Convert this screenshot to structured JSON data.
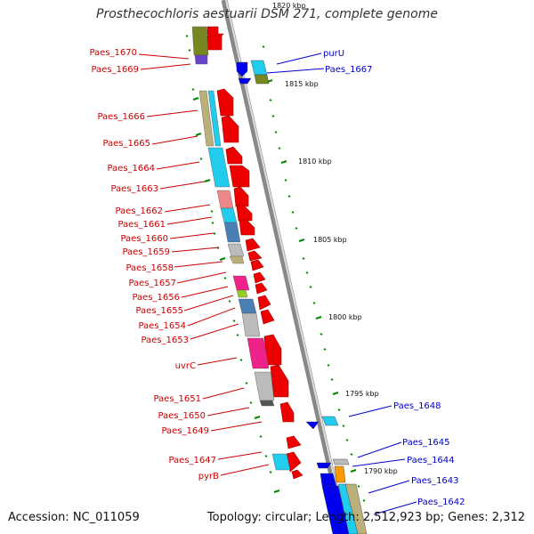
{
  "title": "Prosthecochloris aestuarii DSM 271, complete genome",
  "footer": {
    "accession": "Accession: NC_011059",
    "summary": "Topology: circular; Length: 2,512,923 bp; Genes: 2,312"
  },
  "colors": {
    "label_left": "#cc0000",
    "label_right": "#0000cc",
    "tick": "#008800",
    "backbone": "#888888",
    "backbone_light": "#dddddd",
    "red": "#ee0000",
    "blue": "#0000ee",
    "cyan": "#22ccee",
    "steel": "#4a7fb5",
    "olive": "#778822",
    "lime": "#99cc22",
    "tan": "#bbb07a",
    "pink": "#ee8888",
    "magenta": "#ee2288",
    "grey": "#bbbbbb",
    "purple": "#6644cc",
    "orange": "#ff9900"
  },
  "scale_labels": [
    "1820 kbp",
    "1815 kbp",
    "1810 kbp",
    "1805 kbp",
    "1800 kbp",
    "1795 kbp",
    "1790 kbp"
  ],
  "left_labels": [
    "Paes_1670",
    "Paes_1669",
    "Paes_1666",
    "Paes_1665",
    "Paes_1664",
    "Paes_1663",
    "Paes_1662",
    "Paes_1661",
    "Paes_1660",
    "Paes_1659",
    "Paes_1658",
    "Paes_1657",
    "Paes_1656",
    "Paes_1655",
    "Paes_1654",
    "Paes_1653",
    "uvrC",
    "Paes_1651",
    "Paes_1650",
    "Paes_1649",
    "Paes_1647",
    "pyrB"
  ],
  "right_labels": [
    "purU",
    "Paes_1667",
    "Paes_1648",
    "Paes_1645",
    "Paes_1644",
    "Paes_1643",
    "Paes_1642"
  ]
}
